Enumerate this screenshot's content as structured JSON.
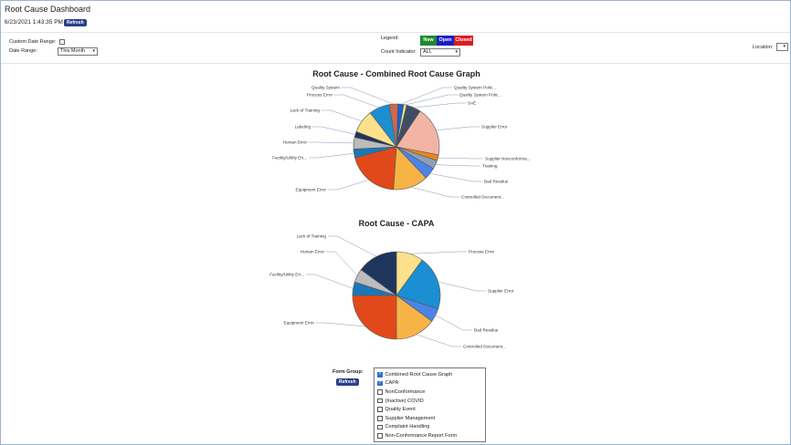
{
  "header": {
    "title": "Root Cause Dashboard",
    "timestamp": "6/23/2021 1:43:35 PM",
    "refresh_label": "Refresh"
  },
  "filters": {
    "custom_date_range_label": "Custom Date Range:",
    "custom_date_range_checked": false,
    "date_range_label": "Date Range:",
    "date_range_value": "This Month",
    "legend_label": "Legend:",
    "legend_items": [
      {
        "label": "New",
        "color": "#1e8a2e"
      },
      {
        "label": "Open",
        "color": "#1c1ccc"
      },
      {
        "label": "Closed",
        "color": "#e01b1b"
      }
    ],
    "count_indicator_label": "Count Indicator:",
    "count_indicator_value": "ALL",
    "location_label": "Location:",
    "location_value": ""
  },
  "chart_data": [
    {
      "type": "pie",
      "title": "Root Cause - Combined Root Cause Graph",
      "categories": [
        "Quality System Polic...",
        "Quality System Polic...",
        "SAE",
        "Supplier Error",
        "Supplier Nonconforma...",
        "Training",
        "Bad Residue",
        "Controlled Document...",
        "Equipment Error",
        "Facility/Utility Err...",
        "Human Error",
        "Labeling",
        "Lack of Training",
        "Process Error",
        "Quality System"
      ],
      "values": [
        2,
        1,
        5,
        17,
        2,
        3,
        4,
        12,
        18,
        3,
        4,
        2,
        8,
        7,
        3
      ],
      "colors": [
        "#1a5fcf",
        "#f4e79a",
        "#3d4d66",
        "#f2b5a5",
        "#e8871b",
        "#8c9fb8",
        "#4a84e8",
        "#f7b446",
        "#e2491a",
        "#1c77b8",
        "#bcbcbc",
        "#1e355e",
        "#fde08a",
        "#1b8fd1",
        "#c96a4e"
      ]
    },
    {
      "type": "pie",
      "title": "Root Cause - CAPA",
      "categories": [
        "Process Error",
        "Supplier Error",
        "Bad Residue",
        "Controlled Document...",
        "Equipment Error",
        "Facility/Utility Err...",
        "Human Error",
        "Lack of Training"
      ],
      "values": [
        2,
        4,
        1,
        3,
        5,
        1,
        1,
        3
      ],
      "colors": [
        "#fde08a",
        "#1b8fd1",
        "#4a84e8",
        "#f7b446",
        "#e2491a",
        "#1c77b8",
        "#bcbcbc",
        "#1e355e"
      ]
    }
  ],
  "form_group": {
    "label": "Form Group:",
    "refresh_label": "Refresh",
    "items": [
      {
        "label": "Combined Root Cause Graph",
        "checked": true
      },
      {
        "label": "CAPA",
        "checked": true
      },
      {
        "label": "NonConformance",
        "checked": false
      },
      {
        "label": "(Inactive) COVID",
        "checked": false
      },
      {
        "label": "Quality Event",
        "checked": false
      },
      {
        "label": "Supplier Management",
        "checked": false
      },
      {
        "label": "Complaint Handling",
        "checked": false
      },
      {
        "label": "Non-Conformance Report Form",
        "checked": false
      }
    ]
  }
}
